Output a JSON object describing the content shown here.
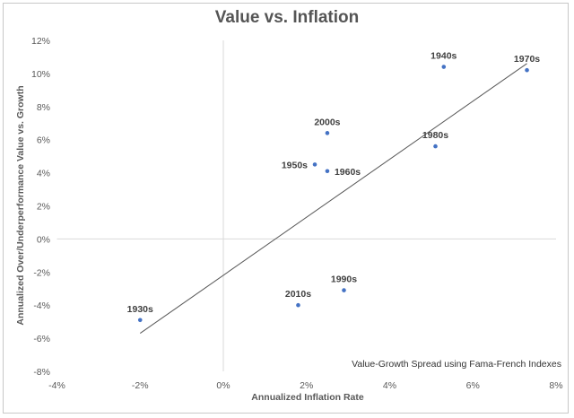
{
  "chart_data": {
    "type": "scatter",
    "title": "Value vs. Inflation",
    "xlabel": "Annualized Inflation Rate",
    "ylabel": "Annualized Over/Underperformance Value vs. Growth",
    "annotation": "Value-Growth Spread using Fama-French Indexes",
    "xlim": [
      -4,
      8
    ],
    "ylim": [
      -8,
      12
    ],
    "x_ticks": [
      "-4%",
      "-2%",
      "0%",
      "2%",
      "4%",
      "6%",
      "8%"
    ],
    "y_ticks": [
      "12%",
      "10%",
      "8%",
      "6%",
      "4%",
      "2%",
      "0%",
      "-2%",
      "-4%",
      "-6%",
      "-8%"
    ],
    "grid": "zero lines only",
    "marker_color": "#4472c4",
    "points": [
      {
        "label": "1930s",
        "x": -2.0,
        "y": -4.9
      },
      {
        "label": "1940s",
        "x": 5.3,
        "y": 10.4
      },
      {
        "label": "1950s",
        "x": 2.2,
        "y": 4.5
      },
      {
        "label": "1960s",
        "x": 2.5,
        "y": 4.1
      },
      {
        "label": "1970s",
        "x": 7.3,
        "y": 10.2
      },
      {
        "label": "1980s",
        "x": 5.1,
        "y": 5.6
      },
      {
        "label": "1990s",
        "x": 2.9,
        "y": -3.1
      },
      {
        "label": "2000s",
        "x": 2.5,
        "y": 6.4
      },
      {
        "label": "2010s",
        "x": 1.8,
        "y": -4.0
      }
    ],
    "trendline": {
      "type": "linear",
      "from": {
        "x": -2.0,
        "y": -5.7
      },
      "to": {
        "x": 7.3,
        "y": 10.6
      }
    }
  }
}
